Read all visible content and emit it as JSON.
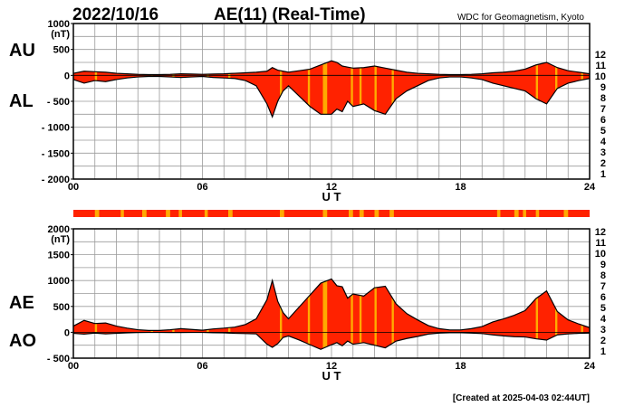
{
  "header": {
    "date": "2022/10/16",
    "title": "AE(11) (Real-Time)",
    "source": "WDC for Geomagnetism, Kyoto"
  },
  "footer": {
    "created": "[Created at 2025-04-03 02:44UT]"
  },
  "colors": {
    "fill_main": "#ff2200",
    "fill_alt": "#ffaa00",
    "stroke": "#000000",
    "grid": "#9a9a9a"
  },
  "station_legend": [
    {
      "label": "12",
      "color": "#ee1188"
    },
    {
      "label": "11",
      "color": "#ee0000"
    },
    {
      "label": "10",
      "color": "#ffaa00"
    },
    {
      "label": "9",
      "color": "#dddd00"
    },
    {
      "label": "8",
      "color": "#66dd00"
    },
    {
      "label": "7",
      "color": "#00cccc"
    },
    {
      "label": "6",
      "color": "#0066ff"
    },
    {
      "label": "5",
      "color": "#2200cc"
    },
    {
      "label": "4",
      "color": "#cc00cc"
    },
    {
      "label": "3",
      "color": "#000000"
    },
    {
      "label": "2",
      "color": "#888888"
    },
    {
      "label": "1",
      "color": "#cccccc"
    }
  ],
  "coverage_bar": {
    "color": "#ff2200",
    "alt_color": "#ffaa00",
    "alt_intervals": [
      [
        1.0,
        1.2
      ],
      [
        2.2,
        2.35
      ],
      [
        3.2,
        3.4
      ],
      [
        4.3,
        4.5
      ],
      [
        4.9,
        5.05
      ],
      [
        6.1,
        6.25
      ],
      [
        7.2,
        7.4
      ],
      [
        9.6,
        9.8
      ],
      [
        11.6,
        11.8
      ],
      [
        12.8,
        13.0
      ],
      [
        13.3,
        13.5
      ],
      [
        14.0,
        14.2
      ],
      [
        14.7,
        14.9
      ],
      [
        19.7,
        19.85
      ],
      [
        20.5,
        20.7
      ],
      [
        20.9,
        21.05
      ],
      [
        21.5,
        21.65
      ],
      [
        22.8,
        23.0
      ]
    ]
  },
  "chart_data": [
    {
      "type": "area",
      "name": "AU-AL",
      "left_labels": [
        "AU",
        "AL"
      ],
      "xlabel": "U T",
      "ylabel": "(nT)",
      "xlim": [
        0,
        24
      ],
      "ylim": [
        -2000,
        1000
      ],
      "xticks": [
        0,
        6,
        12,
        18,
        24
      ],
      "xtick_labels": [
        "00",
        "06",
        "12",
        "18",
        "24"
      ],
      "yticks": [
        1000,
        500,
        0,
        -500,
        -1000,
        -1500,
        -2000
      ],
      "ytick_labels": [
        "1000",
        "500",
        "0",
        "- 500",
        "- 1000",
        "- 1500",
        "- 2000"
      ],
      "grid": true,
      "x": [
        0,
        0.5,
        1,
        1.5,
        2,
        2.5,
        3,
        3.5,
        4,
        4.5,
        5,
        5.5,
        6,
        6.5,
        7,
        7.5,
        8,
        8.5,
        9,
        9.25,
        9.5,
        9.75,
        10,
        10.5,
        11,
        11.5,
        12,
        12.25,
        12.5,
        12.75,
        13,
        13.5,
        14,
        14.5,
        15,
        15.5,
        16,
        16.5,
        17,
        17.5,
        18,
        18.5,
        19,
        19.5,
        20,
        20.5,
        21,
        21.5,
        22,
        22.5,
        23,
        23.5,
        24
      ],
      "upper": [
        40,
        80,
        70,
        60,
        40,
        30,
        20,
        15,
        15,
        20,
        30,
        25,
        20,
        25,
        30,
        40,
        50,
        60,
        80,
        150,
        100,
        80,
        60,
        90,
        120,
        200,
        280,
        250,
        180,
        160,
        140,
        150,
        180,
        140,
        100,
        60,
        40,
        30,
        20,
        15,
        15,
        20,
        30,
        50,
        60,
        80,
        120,
        200,
        250,
        150,
        90,
        60,
        30
      ],
      "lower": [
        -80,
        -150,
        -100,
        -120,
        -80,
        -50,
        -30,
        -20,
        -20,
        -30,
        -40,
        -30,
        -20,
        -40,
        -50,
        -60,
        -100,
        -200,
        -550,
        -800,
        -500,
        -300,
        -200,
        -400,
        -600,
        -750,
        -750,
        -650,
        -700,
        -500,
        -600,
        -550,
        -680,
        -750,
        -450,
        -300,
        -200,
        -100,
        -50,
        -30,
        -30,
        -50,
        -80,
        -150,
        -200,
        -250,
        -300,
        -450,
        -550,
        -250,
        -150,
        -100,
        -60
      ],
      "alt_intervals": [
        [
          1.0,
          1.1
        ],
        [
          3.6,
          3.7
        ],
        [
          4.6,
          4.7
        ],
        [
          6.2,
          6.3
        ],
        [
          7.2,
          7.3
        ],
        [
          9.6,
          9.7
        ],
        [
          10.9,
          11.0
        ],
        [
          11.6,
          11.8
        ],
        [
          12.9,
          13.0
        ],
        [
          13.3,
          13.4
        ],
        [
          14.0,
          14.1
        ],
        [
          14.8,
          14.9
        ],
        [
          21.5,
          21.6
        ],
        [
          22.4,
          22.5
        ],
        [
          23.6,
          23.7
        ]
      ]
    },
    {
      "type": "area",
      "name": "AE-AO",
      "left_labels": [
        "AE",
        "AO"
      ],
      "xlabel": "U T",
      "ylabel": "(nT)",
      "xlim": [
        0,
        24
      ],
      "ylim": [
        -500,
        2000
      ],
      "xticks": [
        0,
        6,
        12,
        18,
        24
      ],
      "xtick_labels": [
        "00",
        "06",
        "12",
        "18",
        "24"
      ],
      "yticks": [
        2000,
        1500,
        1000,
        500,
        0,
        -500
      ],
      "ytick_labels": [
        "2000",
        "1500",
        "1000",
        "500",
        "0",
        "- 500"
      ],
      "grid": true,
      "x": [
        0,
        0.5,
        1,
        1.5,
        2,
        2.5,
        3,
        3.5,
        4,
        4.5,
        5,
        5.5,
        6,
        6.5,
        7,
        7.5,
        8,
        8.5,
        9,
        9.25,
        9.5,
        9.75,
        10,
        10.5,
        11,
        11.5,
        12,
        12.25,
        12.5,
        12.75,
        13,
        13.5,
        14,
        14.5,
        15,
        15.5,
        16,
        16.5,
        17,
        17.5,
        18,
        18.5,
        19,
        19.5,
        20,
        20.5,
        21,
        21.5,
        22,
        22.5,
        23,
        23.5,
        24
      ],
      "upper": [
        120,
        230,
        170,
        180,
        120,
        80,
        50,
        35,
        35,
        50,
        70,
        55,
        40,
        65,
        80,
        100,
        150,
        260,
        630,
        1000,
        600,
        380,
        260,
        490,
        720,
        950,
        1030,
        900,
        880,
        660,
        740,
        700,
        860,
        890,
        550,
        360,
        240,
        130,
        70,
        45,
        45,
        70,
        110,
        200,
        260,
        330,
        420,
        650,
        800,
        400,
        240,
        160,
        90
      ],
      "lower": [
        -20,
        -35,
        -15,
        -30,
        -20,
        -10,
        -5,
        -3,
        -3,
        -5,
        -5,
        -3,
        -3,
        -8,
        -10,
        -20,
        -25,
        -30,
        -230,
        -290,
        -220,
        -100,
        -70,
        -150,
        -240,
        -330,
        -240,
        -200,
        -260,
        -170,
        -230,
        -200,
        -250,
        -300,
        -170,
        -120,
        -80,
        -35,
        -15,
        -8,
        -8,
        -15,
        -25,
        -50,
        -70,
        -85,
        -90,
        -125,
        -150,
        -50,
        -30,
        -20,
        -15
      ],
      "alt_intervals": [
        [
          1.0,
          1.1
        ],
        [
          3.6,
          3.7
        ],
        [
          4.6,
          4.7
        ],
        [
          6.2,
          6.3
        ],
        [
          7.2,
          7.3
        ],
        [
          9.6,
          9.7
        ],
        [
          10.9,
          11.0
        ],
        [
          11.6,
          11.8
        ],
        [
          12.9,
          13.0
        ],
        [
          13.3,
          13.4
        ],
        [
          14.0,
          14.1
        ],
        [
          14.8,
          14.9
        ],
        [
          21.5,
          21.6
        ],
        [
          22.4,
          22.5
        ],
        [
          23.6,
          23.7
        ]
      ]
    }
  ]
}
